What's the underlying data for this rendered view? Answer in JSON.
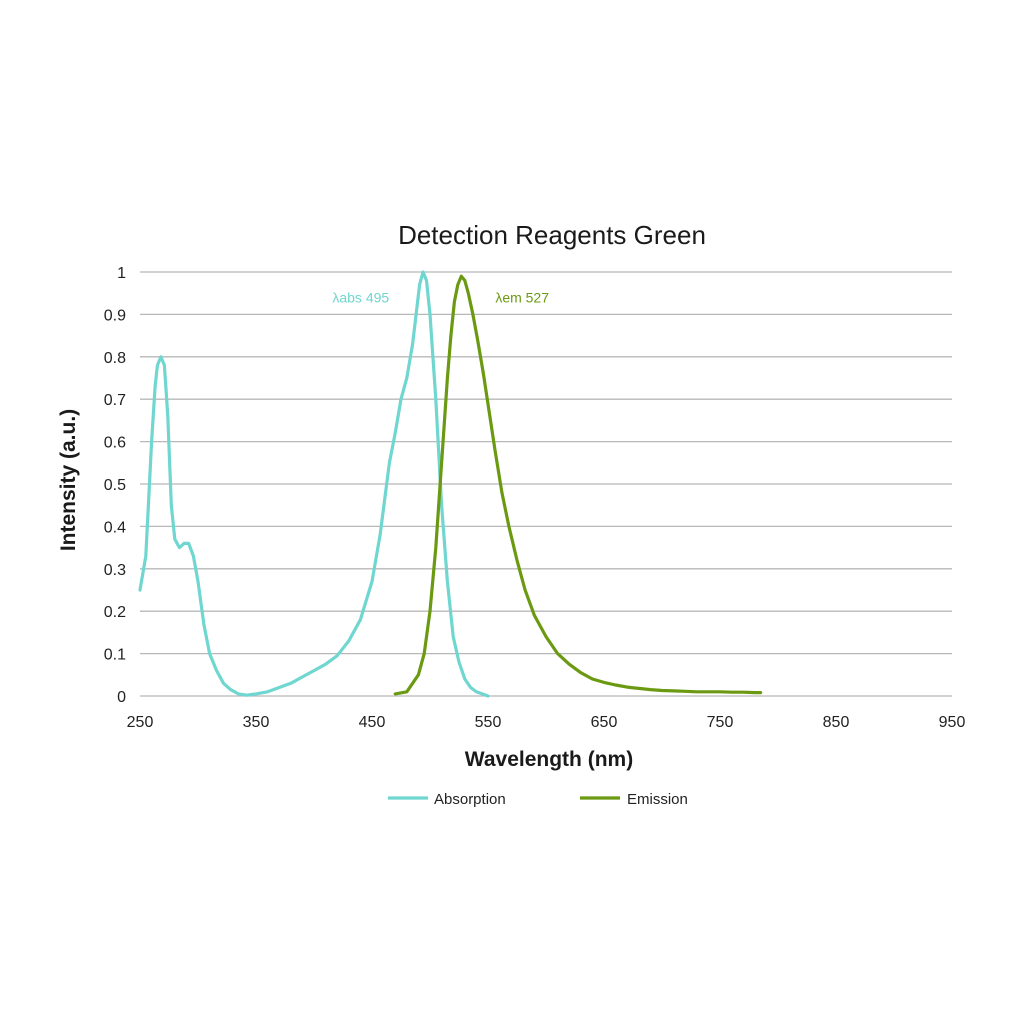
{
  "chart_data": {
    "type": "line",
    "title": "Detection Reagents Green",
    "xlabel": "Wavelength (nm)",
    "ylabel": "Intensity (a.u.)",
    "xlim": [
      250,
      950
    ],
    "ylim": [
      0,
      1
    ],
    "xticks": [
      250,
      350,
      450,
      550,
      650,
      750,
      850,
      950
    ],
    "yticks": [
      0,
      0.1,
      0.2,
      0.3,
      0.4,
      0.5,
      0.6,
      0.7,
      0.8,
      0.9,
      1
    ],
    "ytick_labels": [
      "0",
      "0.1",
      "0.2",
      "0.3",
      "0.4",
      "0.5",
      "0.6",
      "0.7",
      "0.8",
      "0.9",
      "1"
    ],
    "grid": "horizontal",
    "legend_position": "bottom",
    "series": [
      {
        "name": "Absorption",
        "color": "#6fd6d0",
        "x": [
          250,
          255,
          260,
          263,
          265,
          268,
          271,
          274,
          277,
          280,
          284,
          288,
          292,
          296,
          300,
          305,
          310,
          316,
          322,
          328,
          335,
          342,
          350,
          360,
          370,
          380,
          390,
          400,
          410,
          420,
          430,
          440,
          450,
          457,
          465,
          470,
          475,
          480,
          485,
          488,
          491,
          494,
          497,
          500,
          505,
          510,
          515,
          520,
          525,
          530,
          535,
          540,
          545,
          550
        ],
        "y": [
          0.25,
          0.33,
          0.6,
          0.73,
          0.78,
          0.8,
          0.78,
          0.66,
          0.45,
          0.37,
          0.35,
          0.36,
          0.36,
          0.33,
          0.27,
          0.17,
          0.1,
          0.06,
          0.03,
          0.015,
          0.005,
          0.002,
          0.005,
          0.01,
          0.02,
          0.03,
          0.045,
          0.06,
          0.075,
          0.095,
          0.13,
          0.18,
          0.27,
          0.38,
          0.55,
          0.62,
          0.7,
          0.75,
          0.83,
          0.9,
          0.97,
          1.0,
          0.98,
          0.9,
          0.7,
          0.45,
          0.27,
          0.14,
          0.08,
          0.04,
          0.02,
          0.01,
          0.005,
          0.0
        ]
      },
      {
        "name": "Emission",
        "color": "#6b9a12",
        "x": [
          470,
          480,
          490,
          495,
          500,
          505,
          510,
          515,
          518,
          521,
          524,
          527,
          530,
          533,
          537,
          541,
          546,
          551,
          556,
          562,
          568,
          575,
          582,
          590,
          600,
          610,
          620,
          630,
          640,
          650,
          660,
          670,
          680,
          690,
          700,
          710,
          720,
          730,
          740,
          750,
          760,
          770,
          780,
          785
        ],
        "y": [
          0.005,
          0.01,
          0.05,
          0.1,
          0.2,
          0.35,
          0.55,
          0.75,
          0.85,
          0.93,
          0.97,
          0.99,
          0.98,
          0.95,
          0.9,
          0.84,
          0.76,
          0.67,
          0.58,
          0.48,
          0.4,
          0.32,
          0.25,
          0.19,
          0.14,
          0.1,
          0.075,
          0.055,
          0.04,
          0.032,
          0.026,
          0.021,
          0.018,
          0.015,
          0.013,
          0.012,
          0.011,
          0.01,
          0.01,
          0.01,
          0.009,
          0.009,
          0.008,
          0.008
        ]
      }
    ],
    "annotations": [
      {
        "series": "Absorption",
        "text": "λabs 495",
        "x": 495,
        "y": 0.94
      },
      {
        "series": "Emission",
        "text": "λem 527",
        "x": 527,
        "y": 0.94
      }
    ]
  }
}
